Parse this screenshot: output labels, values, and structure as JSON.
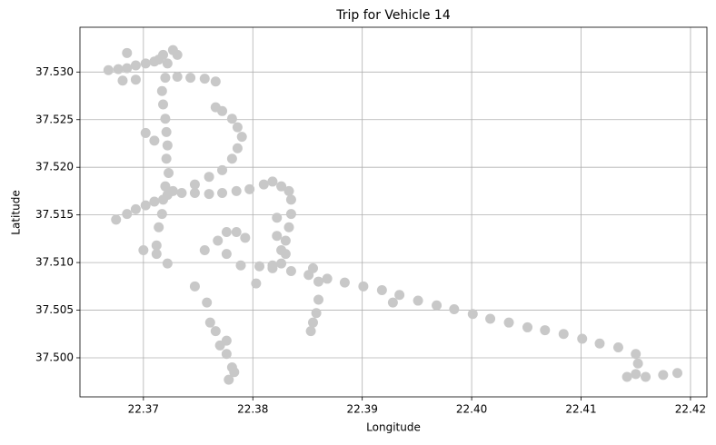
{
  "chart_data": {
    "type": "scatter",
    "title": "Trip for Vehicle 14",
    "xlabel": "Longitude",
    "ylabel": "Latitude",
    "color": "#c8c8c8",
    "grid": true,
    "xlim": [
      22.3642,
      22.4215
    ],
    "ylim": [
      37.4959,
      37.5347
    ],
    "xticks": [
      22.37,
      22.38,
      22.39,
      {
        "value": 22.4,
        "label": "22.40"
      },
      22.41,
      22.42
    ],
    "yticks": [
      {
        "value": 37.5,
        "label": "37.500"
      },
      37.505,
      {
        "value": 37.51,
        "label": "37.510"
      },
      37.515,
      {
        "value": 37.52,
        "label": "37.520"
      },
      37.525,
      {
        "value": 37.53,
        "label": "37.530"
      }
    ],
    "x": [
      22.3818,
      22.3835,
      22.3851,
      22.3868,
      22.3884,
      22.3901,
      22.3918,
      22.3934,
      22.3951,
      22.3968,
      22.3984,
      22.4001,
      22.4017,
      22.4034,
      22.4051,
      22.4067,
      22.4084,
      22.4101,
      22.4117,
      22.4134,
      22.415,
      22.4152,
      22.415,
      22.4142,
      22.4159,
      22.4175,
      22.4188,
      22.3806,
      22.3818,
      22.3826,
      22.383,
      22.383,
      22.3833,
      22.3835,
      22.3835,
      22.3833,
      22.3826,
      22.3818,
      22.381,
      22.3797,
      22.3785,
      22.3772,
      22.376,
      22.3747,
      22.3735,
      22.3727,
      22.3822,
      22.3822,
      22.3826,
      22.3747,
      22.376,
      22.3772,
      22.3781,
      22.3786,
      22.379,
      22.3786,
      22.3781,
      22.3772,
      22.3766,
      22.3731,
      22.3743,
      22.3756,
      22.3766,
      22.3718,
      22.3722,
      22.372,
      22.3717,
      22.3718,
      22.372,
      22.3721,
      22.3722,
      22.3721,
      22.3723,
      22.372,
      22.3718,
      22.3717,
      22.3714,
      22.3712,
      22.3727,
      22.3731,
      22.3668,
      22.3677,
      22.3685,
      22.3693,
      22.3702,
      22.371,
      22.3714,
      22.3685,
      22.3681,
      22.3693,
      22.3675,
      22.3685,
      22.3693,
      22.3702,
      22.371,
      22.3722,
      22.3702,
      22.371,
      22.37,
      22.3712,
      22.3722,
      22.3756,
      22.3768,
      22.3776,
      22.3785,
      22.3793,
      22.3776,
      22.3789,
      22.3747,
      22.3758,
      22.3761,
      22.3766,
      22.377,
      22.3776,
      22.3781,
      22.3783,
      22.3778,
      22.3776,
      22.3803,
      22.3855,
      22.386,
      22.386,
      22.3858,
      22.3855,
      22.3853,
      22.3928
    ],
    "values": [
      37.5094,
      37.5091,
      37.5087,
      37.5083,
      37.5079,
      37.5075,
      37.5071,
      37.5066,
      37.506,
      37.5055,
      37.5051,
      37.5046,
      37.5041,
      37.5037,
      37.5032,
      37.5029,
      37.5025,
      37.502,
      37.5015,
      37.5011,
      37.5004,
      37.4994,
      37.4983,
      37.498,
      37.498,
      37.4982,
      37.4984,
      37.5096,
      37.5097,
      37.5099,
      37.5109,
      37.5123,
      37.5137,
      37.5151,
      37.5166,
      37.5175,
      37.518,
      37.5185,
      37.5182,
      37.5177,
      37.5175,
      37.5173,
      37.5172,
      37.5173,
      37.5173,
      37.5175,
      37.5147,
      37.5128,
      37.5113,
      37.5182,
      37.519,
      37.5197,
      37.5209,
      37.522,
      37.5232,
      37.5242,
      37.5251,
      37.5259,
      37.5263,
      37.5295,
      37.5294,
      37.5293,
      37.529,
      37.5318,
      37.5309,
      37.5294,
      37.528,
      37.5266,
      37.5251,
      37.5237,
      37.5223,
      37.5209,
      37.5194,
      37.518,
      37.5166,
      37.5151,
      37.5137,
      37.5118,
      37.5323,
      37.5318,
      37.5302,
      37.5303,
      37.5304,
      37.5307,
      37.5309,
      37.5311,
      37.5313,
      37.532,
      37.5291,
      37.5292,
      37.5145,
      37.5151,
      37.5156,
      37.516,
      37.5164,
      37.5171,
      37.5236,
      37.5228,
      37.5113,
      37.5109,
      37.5099,
      37.5113,
      37.5123,
      37.5132,
      37.5132,
      37.5126,
      37.5109,
      37.5097,
      37.5075,
      37.5058,
      37.5037,
      37.5028,
      37.5013,
      37.5004,
      37.499,
      37.4985,
      37.4977,
      37.5018,
      37.5078,
      37.5094,
      37.508,
      37.5061,
      37.5047,
      37.5037,
      37.5028,
      37.5058
    ]
  }
}
